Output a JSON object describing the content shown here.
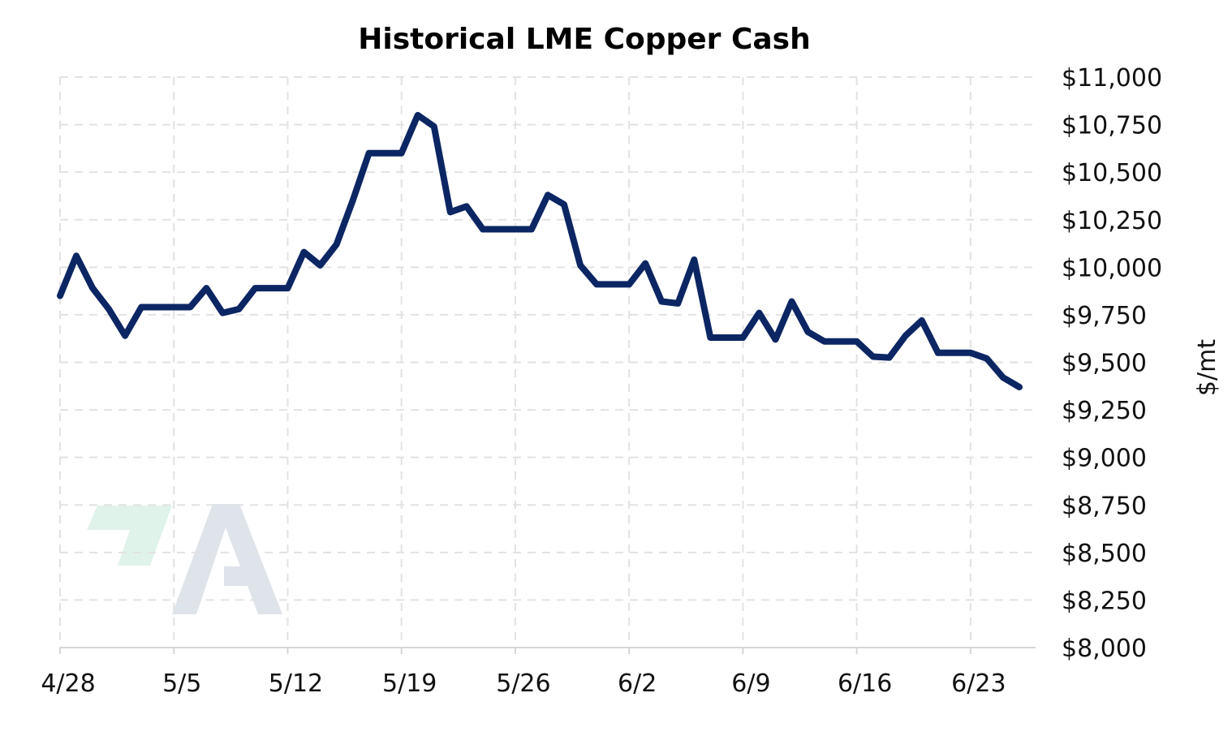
{
  "chart_data": {
    "type": "line",
    "title": "Historical LME Copper Cash",
    "xlabel": "",
    "ylabel": "$/mt",
    "ylim": [
      8000,
      11000
    ],
    "y_ticks": [
      8000,
      8250,
      8500,
      8750,
      9000,
      9250,
      9500,
      9750,
      10000,
      10250,
      10500,
      10750,
      11000
    ],
    "y_tick_labels": [
      "$8,000",
      "$8,250",
      "$8,500",
      "$8,750",
      "$9,000",
      "$9,250",
      "$9,500",
      "$9,750",
      "$10,000",
      "$10,250",
      "$10,500",
      "$10,750",
      "$11,000"
    ],
    "x_range": [
      "4/28",
      "6/27"
    ],
    "x_tick_labels": [
      "4/28",
      "5/5",
      "5/12",
      "5/19",
      "5/26",
      "6/2",
      "6/9",
      "6/16",
      "6/23"
    ],
    "grid": true,
    "legend": "none",
    "series_color": "#0b2663",
    "series": [
      {
        "x": [
          "4/28",
          "4/29",
          "4/30",
          "5/1",
          "5/2",
          "5/3",
          "5/4",
          "5/5",
          "5/6",
          "5/7",
          "5/8",
          "5/9",
          "5/10",
          "5/11",
          "5/12",
          "5/13",
          "5/14",
          "5/15",
          "5/16",
          "5/17",
          "5/18",
          "5/19",
          "5/20",
          "5/21",
          "5/22",
          "5/23",
          "5/24",
          "5/25",
          "5/26",
          "5/27",
          "5/28",
          "5/29",
          "5/30",
          "5/31",
          "6/1",
          "6/2",
          "6/3",
          "6/4",
          "6/5",
          "6/6",
          "6/7",
          "6/8",
          "6/9",
          "6/10",
          "6/11",
          "6/12",
          "6/13",
          "6/14",
          "6/15",
          "6/16",
          "6/17",
          "6/18",
          "6/19",
          "6/20",
          "6/21",
          "6/22",
          "6/23",
          "6/24",
          "6/25",
          "6/26"
        ],
        "values": [
          9850,
          10060,
          9890,
          9780,
          9640,
          9790,
          9790,
          9790,
          9790,
          9890,
          9760,
          9780,
          9890,
          9890,
          9890,
          10080,
          10010,
          10120,
          10350,
          10600,
          10600,
          10600,
          10800,
          10740,
          10290,
          10320,
          10200,
          10200,
          10200,
          10200,
          10380,
          10330,
          10010,
          9910,
          9910,
          9910,
          10020,
          9820,
          9810,
          10040,
          9630,
          9630,
          9630,
          9760,
          9620,
          9820,
          9660,
          9610,
          9610,
          9610,
          9530,
          9525,
          9640,
          9720,
          9550,
          9550,
          9550,
          9520,
          9420,
          9370
        ]
      }
    ],
    "watermark": {
      "green": "#dff3ea",
      "gray": "#dfe3ea"
    }
  }
}
